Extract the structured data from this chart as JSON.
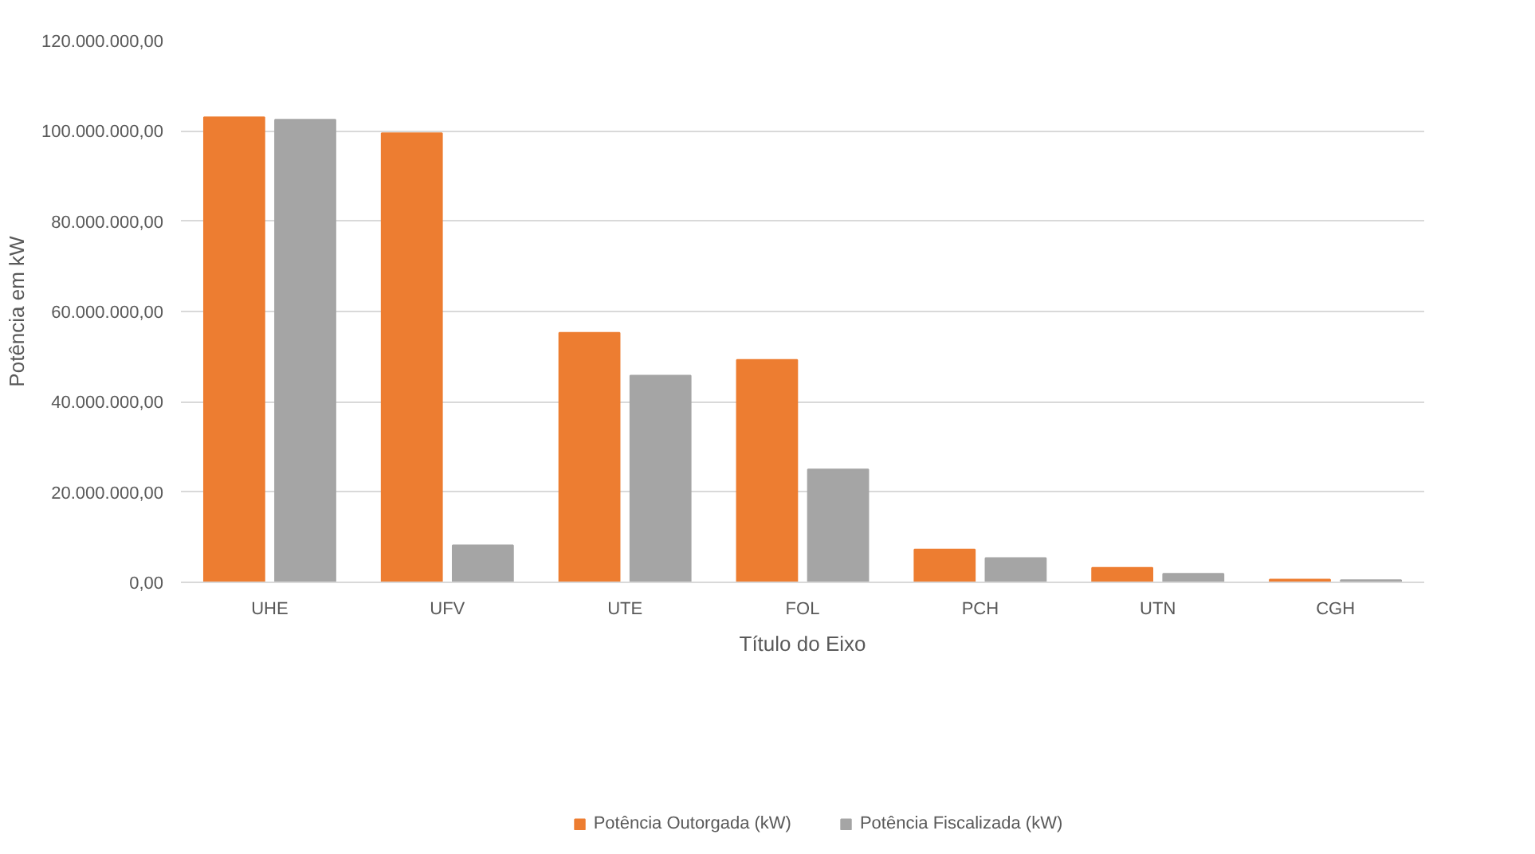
{
  "chart_data": {
    "type": "bar",
    "xlabel": "Título do Eixo",
    "ylabel": "Potência em kW",
    "categories": [
      "UHE",
      "UFV",
      "UTE",
      "FOL",
      "PCH",
      "UTN",
      "CGH"
    ],
    "series": [
      {
        "name": "Potência Outorgada (kW)",
        "color": "#ed7d31",
        "values": [
          103000000,
          99500000,
          55300000,
          49300000,
          7300000,
          3200000,
          600000
        ]
      },
      {
        "name": "Potência Fiscalizada (kW)",
        "color": "#a5a5a5",
        "values": [
          102500000,
          8200000,
          45800000,
          25000000,
          5400000,
          1900000,
          500000
        ]
      }
    ],
    "ylim": [
      0,
      120000000
    ],
    "yticks": [
      {
        "value": 0,
        "label": "0,00"
      },
      {
        "value": 20000000,
        "label": "20.000.000,00"
      },
      {
        "value": 40000000,
        "label": "40.000.000,00"
      },
      {
        "value": 60000000,
        "label": "60.000.000,00"
      },
      {
        "value": 80000000,
        "label": "80.000.000,00"
      },
      {
        "value": 100000000,
        "label": "100.000.000,00"
      },
      {
        "value": 120000000,
        "label": "120.000.000,00"
      }
    ],
    "grid": "y",
    "legend": "bottom"
  }
}
